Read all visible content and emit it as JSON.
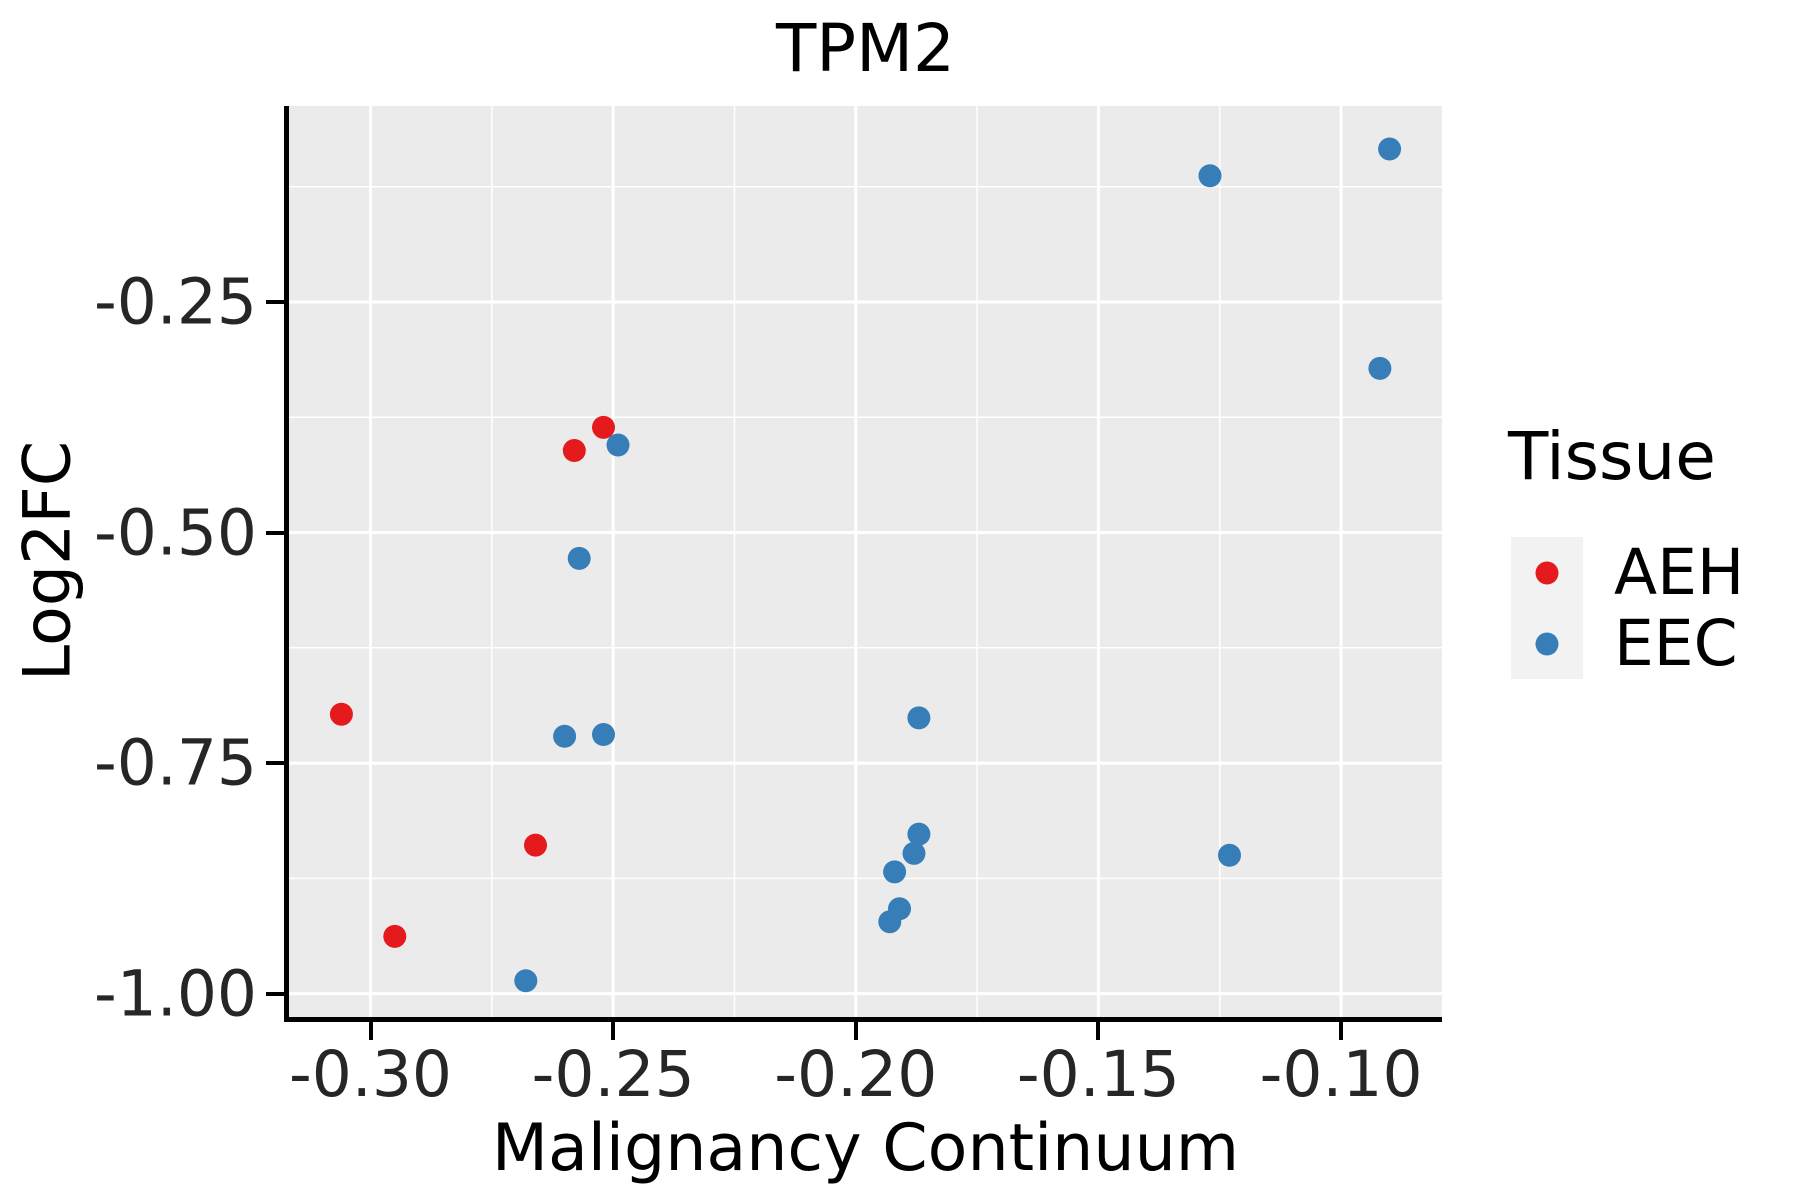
{
  "title": "TPM2",
  "chart_data": {
    "type": "scatter",
    "title": "TPM2",
    "xlabel": "Malignancy Continuum",
    "ylabel": "Log2FC",
    "xlim": [
      -0.3168,
      -0.0792
    ],
    "ylim": [
      -1.0254,
      -0.0374
    ],
    "x_ticks": [
      -0.3,
      -0.25,
      -0.2,
      -0.15,
      -0.1
    ],
    "x_tick_labels": [
      "-0.30",
      "-0.25",
      "-0.20",
      "-0.15",
      "-0.10"
    ],
    "y_ticks": [
      -0.25,
      -0.5,
      -0.75,
      -1.0
    ],
    "y_tick_labels": [
      "-0.25",
      "-0.50",
      "-0.75",
      "-1.00"
    ],
    "grid": true,
    "panel_background": "#ebebeb",
    "gridline_color": "#ffffff",
    "legend_position": "right",
    "legend_title": "Tissue",
    "series": [
      {
        "name": "AEH",
        "color": "#e41a1c",
        "points": [
          [
            -0.306,
            -0.697
          ],
          [
            -0.295,
            -0.938
          ],
          [
            -0.266,
            -0.839
          ],
          [
            -0.258,
            -0.411
          ],
          [
            -0.252,
            -0.386
          ]
        ]
      },
      {
        "name": "EEC",
        "color": "#377eb8",
        "points": [
          [
            -0.268,
            -0.986
          ],
          [
            -0.26,
            -0.721
          ],
          [
            -0.257,
            -0.528
          ],
          [
            -0.252,
            -0.719
          ],
          [
            -0.249,
            -0.405
          ],
          [
            -0.193,
            -0.922
          ],
          [
            -0.191,
            -0.908
          ],
          [
            -0.192,
            -0.868
          ],
          [
            -0.188,
            -0.848
          ],
          [
            -0.187,
            -0.827
          ],
          [
            -0.187,
            -0.701
          ],
          [
            -0.127,
            -0.113
          ],
          [
            -0.123,
            -0.85
          ],
          [
            -0.092,
            -0.322
          ],
          [
            -0.09,
            -0.084
          ]
        ]
      }
    ]
  },
  "legend": {
    "title": "Tissue",
    "items": [
      {
        "label": "AEH",
        "color": "#e41a1c"
      },
      {
        "label": "EEC",
        "color": "#377eb8"
      }
    ]
  }
}
